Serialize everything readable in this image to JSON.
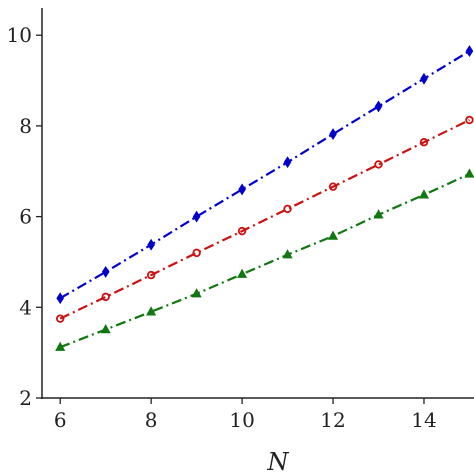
{
  "chart_data": {
    "type": "line",
    "xlabel": "N",
    "ylabel": "",
    "xlim": [
      5.6,
      15.1
    ],
    "ylim": [
      2,
      10.6
    ],
    "xticks": [
      6,
      8,
      10,
      12,
      14
    ],
    "yticks": [
      2,
      4,
      6,
      8,
      10
    ],
    "xtick_labels": [
      "6",
      "8",
      "10",
      "12",
      "14"
    ],
    "ytick_labels": [
      "2",
      "4",
      "6",
      "8",
      "10"
    ],
    "grid": false,
    "x": [
      6,
      7,
      8,
      9,
      10,
      11,
      12,
      13,
      14,
      15
    ],
    "series": [
      {
        "color": "#0000cc",
        "marker": "diamond",
        "values": [
          4.2,
          4.78,
          5.38,
          6.0,
          6.6,
          7.2,
          7.82,
          8.43,
          9.04,
          9.65
        ]
      },
      {
        "color": "#cc1111",
        "marker": "circle",
        "values": [
          3.75,
          4.23,
          4.71,
          5.2,
          5.68,
          6.17,
          6.66,
          7.15,
          7.64,
          8.13
        ]
      },
      {
        "color": "#117711",
        "marker": "triangle",
        "values": [
          3.12,
          3.51,
          3.9,
          4.3,
          4.73,
          5.16,
          5.57,
          6.04,
          6.48,
          6.94
        ]
      }
    ]
  }
}
